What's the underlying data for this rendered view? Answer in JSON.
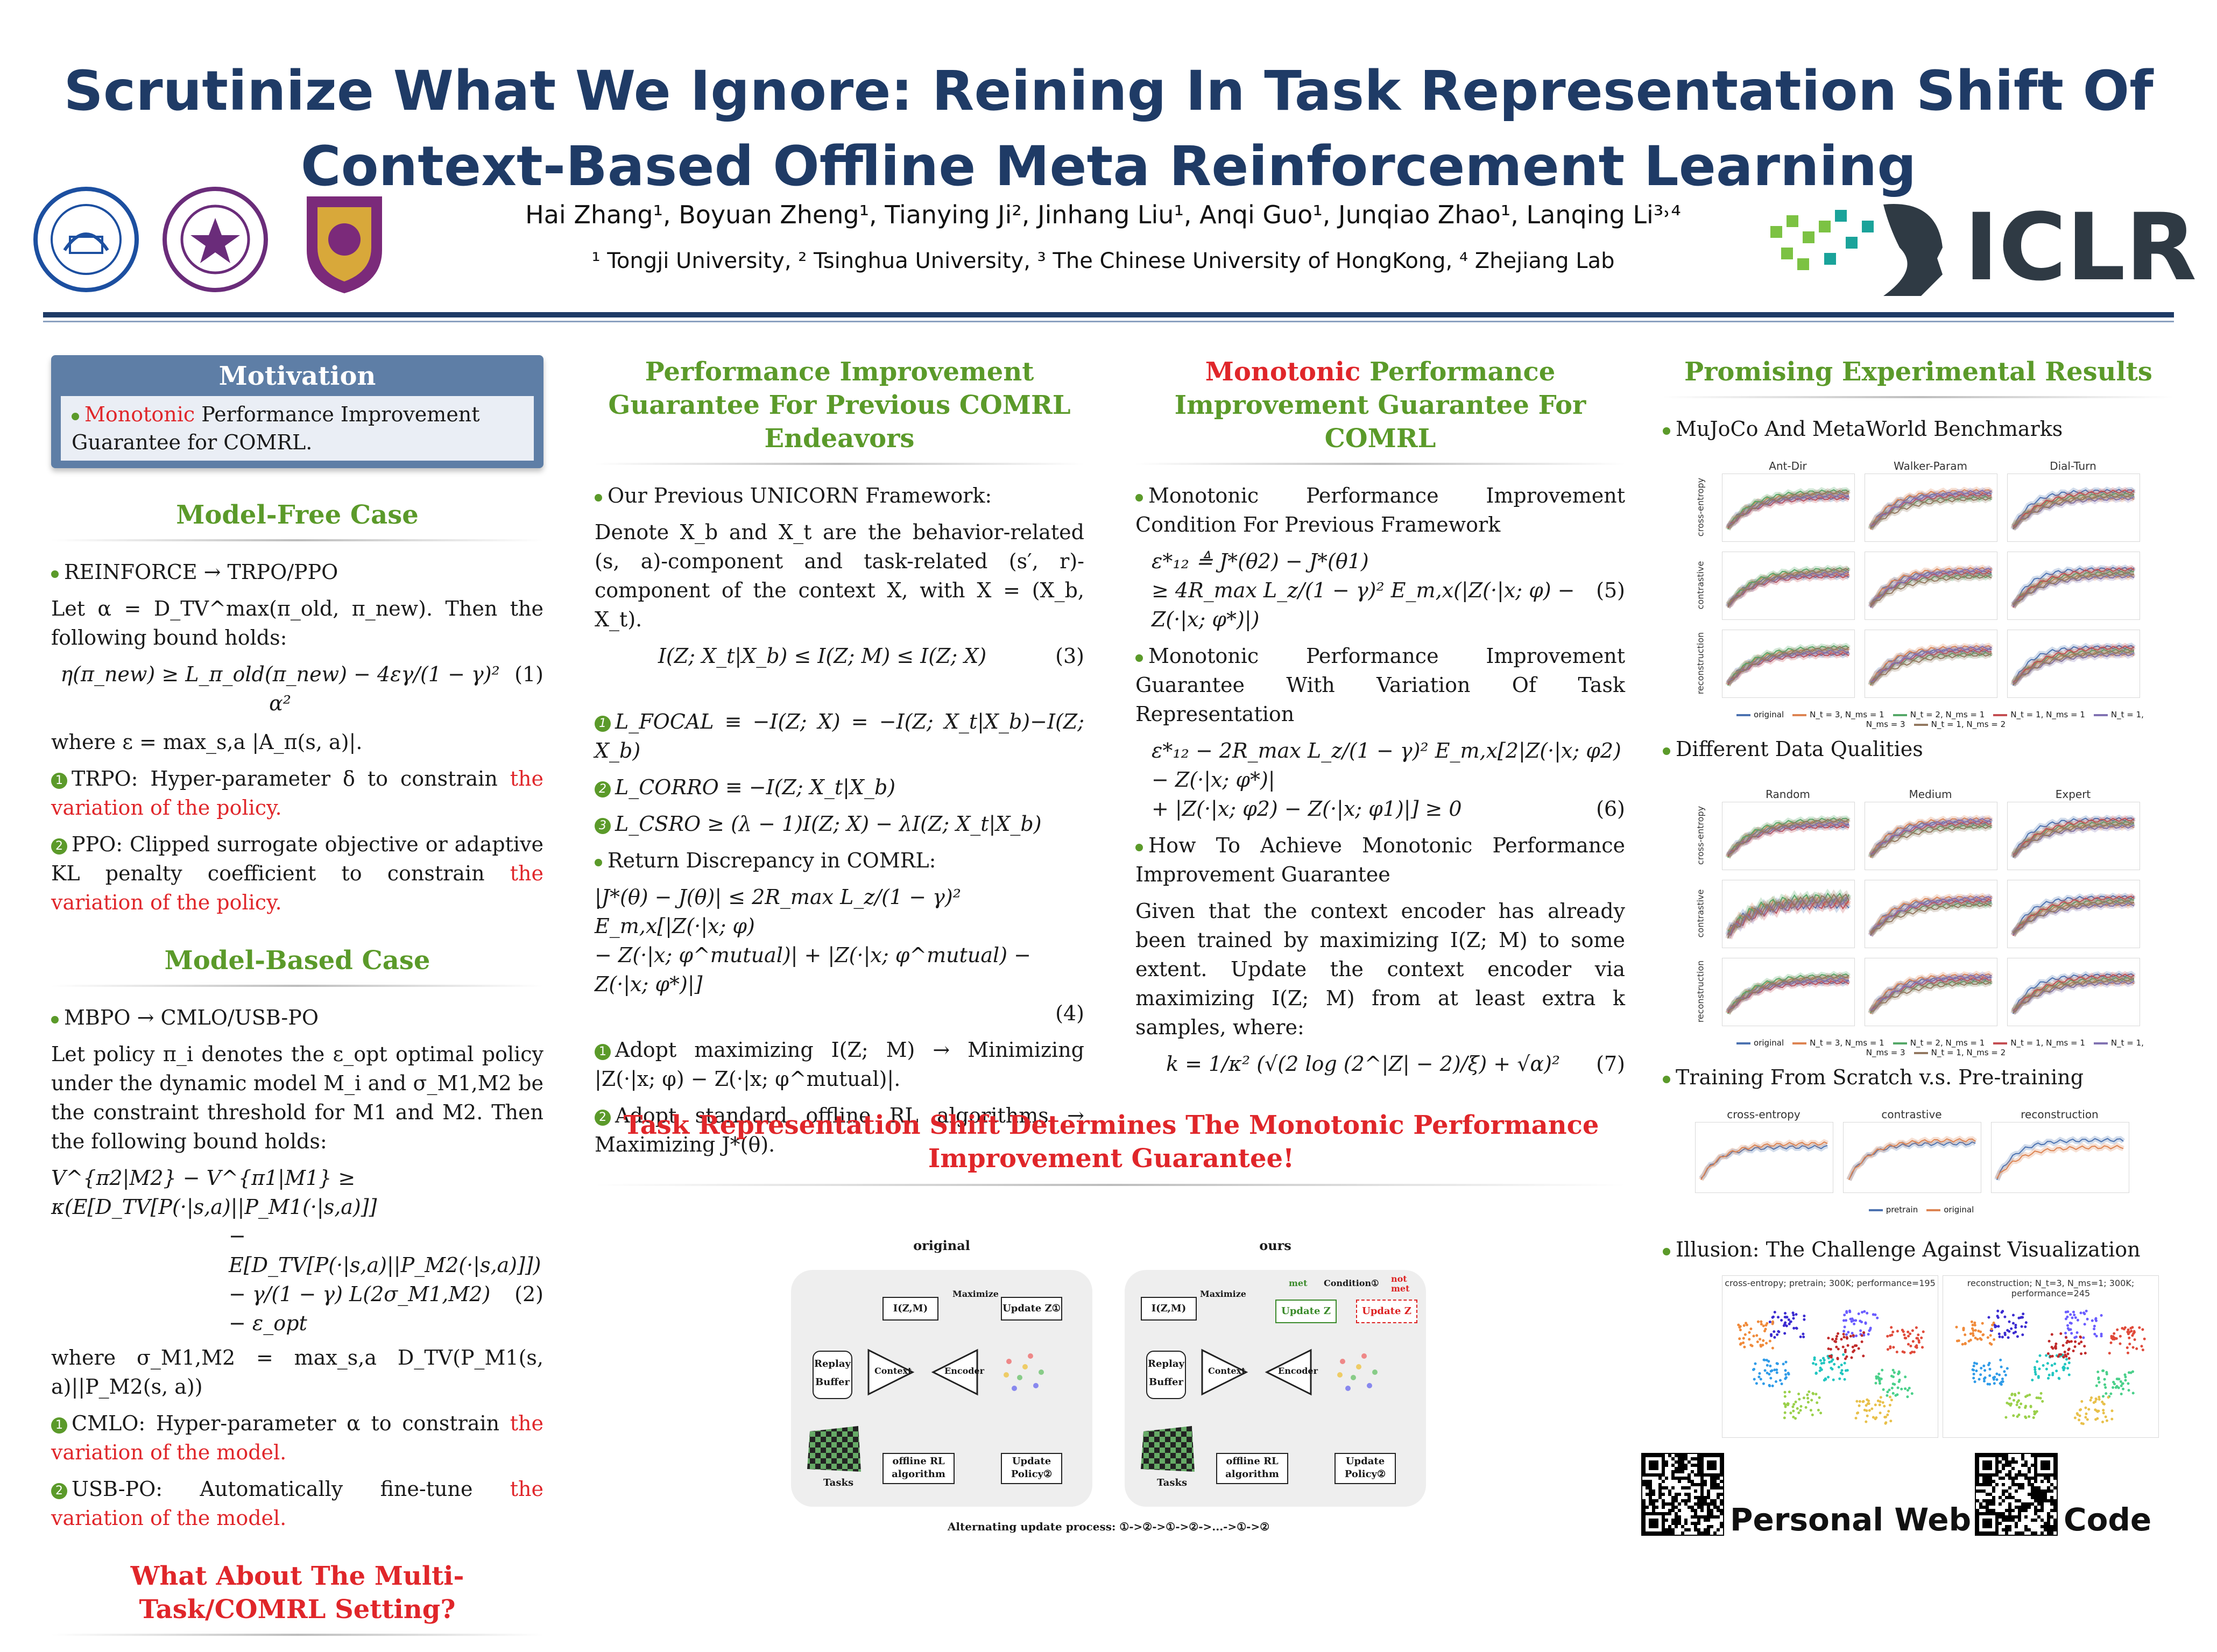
{
  "header": {
    "title_line1": "Scrutinize What We Ignore: Reining In Task Representation Shift Of",
    "title_line2": "Context-Based Offline Meta Reinforcement Learning",
    "authors": "Hai Zhang¹, Boyuan Zheng¹, Tianying Ji², Jinhang Liu¹, Anqi Guo¹, Junqiao Zhao¹, Lanqing Li³˒⁴",
    "affiliations": "¹ Tongji University, ² Tsinghua University, ³ The Chinese University of HongKong, ⁴ Zhejiang Lab",
    "conference_logo": "ICLR",
    "colors": {
      "title": "#1f3b66",
      "green": "#5b9a2a",
      "red": "#e0262a",
      "motivation": "#5e7ea6"
    }
  },
  "col1": {
    "motivation_title": "Motivation",
    "motivation_red": "Monotonic",
    "motivation_rest": " Performance Improvement Guarantee for COMRL.",
    "model_free_title": "Model-Free Case",
    "mf_bullet": "REINFORCE → TRPO/PPO",
    "mf_text1": "Let α = D_TV^max(π_old, π_new). Then the following bound holds:",
    "mf_eq1": "η(π_new) ≥ L_π_old(π_new) − 4εγ/(1 − γ)² α²",
    "mf_eq1_tag": "(1)",
    "mf_text2": "where ε = max_s,a |A_π(s, a)|.",
    "mf_item1_black": "TRPO: Hyper-parameter δ to constrain ",
    "mf_item1_red": "the variation of the policy.",
    "mf_item2_black": "PPO: Clipped surrogate objective or adaptive KL penalty coefficient to constrain ",
    "mf_item2_red": "the variation of the policy.",
    "model_based_title": "Model-Based Case",
    "mb_bullet": "MBPO → CMLO/USB-PO",
    "mb_text1": "Let policy π_i denotes the ε_opt optimal policy under the dynamic model M_i and σ_M1,M2 be the constraint threshold for M1 and M2. Then the following bound holds:",
    "mb_eq2_line1": "V^{π2|M2} − V^{π1|M1} ≥ κ(E[D_TV[P(·|s,a)||P_M1(·|s,a)]]",
    "mb_eq2_line2": "− E[D_TV[P(·|s,a)||P_M2(·|s,a)]])",
    "mb_eq2_line3": "− γ/(1 − γ) L(2σ_M1,M2) − ε_opt",
    "mb_eq2_tag": "(2)",
    "mb_text2": "where σ_M1,M2 = max_s,a D_TV(P_M1(s, a)||P_M2(s, a))",
    "mb_item1_black": "CMLO: Hyper-parameter α to constrain ",
    "mb_item1_red": "the variation of the model.",
    "mb_item2_black": "USB-PO: Automatically fine-tune ",
    "mb_item2_red": "the variation of the model.",
    "question": "What About The Multi-Task/COMRL Setting?"
  },
  "col2": {
    "title": "Performance Improvement Guarantee For Previous COMRL Endeavors",
    "bullet1": "Our Previous UNICORN Framework:",
    "text1": "Denote X_b and X_t are the behavior-related (s, a)-component and task-related (s′, r)-component of the context X, with X = (X_b, X_t).",
    "eq3": "I(Z; X_t|X_b) ≤ I(Z; M) ≤ I(Z; X)",
    "eq3_tag": "(3)",
    "item_focal": "L_FOCAL ≡ −I(Z; X) = −I(Z; X_t|X_b)−I(Z; X_b)",
    "item_corro": "L_CORRO ≡ −I(Z; X_t|X_b)",
    "item_csro": "L_CSRO ≥ (λ − 1)I(Z; X) − λI(Z; X_t|X_b)",
    "bullet2": "Return Discrepancy in COMRL:",
    "eq4_line1": "|J*(θ) − J(θ)| ≤ 2R_max L_z/(1 − γ)² E_m,x[|Z(·|x; φ)",
    "eq4_line2": "− Z(·|x; φ^mutual)| + |Z(·|x; φ^mutual) − Z(·|x; φ*)|]",
    "eq4_tag": "(4)",
    "step1": "Adopt maximizing I(Z; M) → Minimizing |Z(·|x; φ) − Z(·|x; φ^mutual)|.",
    "step2": "Adopt standard offline RL algorithms → Maximizing J*(θ)."
  },
  "col3": {
    "title_red": "Monotonic",
    "title_rest": " Performance Improvement Guarantee For COMRL",
    "bullet1": "Monotonic Performance Improvement Condition For Previous Framework",
    "eq5_line1": "ε*₁₂ ≜ J*(θ2) − J*(θ1)",
    "eq5_line2": "≥ 4R_max L_z/(1 − γ)² E_m,x(|Z(·|x; φ) − Z(·|x; φ*)|)",
    "eq5_tag": "(5)",
    "bullet2": "Monotonic Performance Improvement Guarantee With Variation Of Task Representation",
    "eq6_line1": "ε*₁₂ − 2R_max L_z/(1 − γ)² E_m,x[2|Z(·|x; φ2) − Z(·|x; φ*)|",
    "eq6_line2": "+ |Z(·|x; φ2) − Z(·|x; φ1)|] ≥ 0",
    "eq6_tag": "(6)",
    "bullet3": "How To Achieve Monotonic Performance Improvement Guarantee",
    "text1": "Given that the context encoder has already been trained by maximizing I(Z; M) to some extent. Update the context encoder via maximizing I(Z; M) from at least extra k samples, where:",
    "eq7": "k = 1/κ² (√(2 log (2^|Z| − 2)/ξ) + √α)²",
    "eq7_tag": "(7)"
  },
  "center": {
    "shift_title": "Task Representation Shift Determines The Monotonic Performance Improvement Guarantee!",
    "diagram_left_title": "original",
    "diagram_right_title": "ours",
    "node_izm": "I(Z,M)",
    "node_maximize": "Maximize",
    "node_update_z": "Update Z①",
    "node_replay": "Replay Buffer",
    "node_context": "Context",
    "node_encoder": "Encoder",
    "node_z": "z",
    "node_offline": "offline RL algorithm",
    "node_update_policy": "Update Policy②",
    "node_tasks": "Tasks",
    "node_condition": "Condition①",
    "node_met": "met",
    "node_not_met": "not met",
    "node_update_z_green": "Update Z",
    "node_update_z_red": "Update Z",
    "caption": "Alternating update process: ①->②->①->②->...->①->②"
  },
  "col4": {
    "title": "Promising Experimental Results",
    "b1": "MuJoCo And MetaWorld Benchmarks",
    "b1_cols": [
      "Ant-Dir",
      "Walker-Param",
      "Dial-Turn"
    ],
    "b1_rows": [
      "cross-entropy",
      "contrastive",
      "reconstruction"
    ],
    "b1_legend": [
      "original",
      "N_t = 3, N_ms = 1",
      "N_t = 2, N_ms = 1",
      "N_t = 1, N_ms = 1",
      "N_t = 1, N_ms = 3",
      "N_t = 1, N_ms = 2"
    ],
    "b2": "Different Data Qualities",
    "b2_cols": [
      "Random",
      "Medium",
      "Expert"
    ],
    "b2_rows": [
      "cross-entropy",
      "contrastive",
      "reconstruction"
    ],
    "b2_legend": [
      "original",
      "N_t = 3, N_ms = 1",
      "N_t = 2, N_ms = 1",
      "N_t = 1, N_ms = 1",
      "N_t = 1, N_ms = 3",
      "N_t = 1, N_ms = 2"
    ],
    "b3": "Training From Scratch v.s. Pre-training",
    "b3_cols": [
      "cross-entropy",
      "contrastive",
      "reconstruction"
    ],
    "b3_legend": [
      "pretrain",
      "original"
    ],
    "b4": "Illusion: The Challenge Against Visualization",
    "b4_left": "cross-entropy; pretrain; 300K; performance=195",
    "b4_right": "reconstruction; N_t=3, N_ms=1; 300K; performance=245",
    "personal_web": "Personal Web",
    "code": "Code"
  }
}
